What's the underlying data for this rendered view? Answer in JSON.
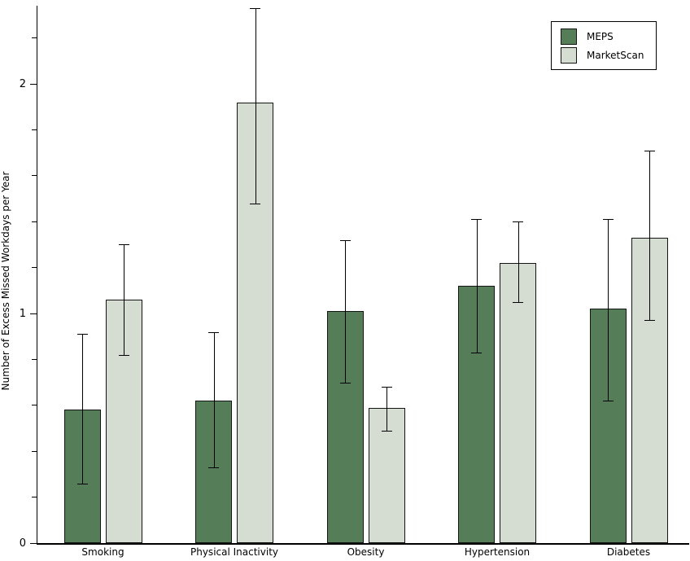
{
  "chart_data": {
    "type": "bar",
    "title": "",
    "xlabel": "",
    "ylabel": "Number of Excess Missed Workdays per Year",
    "categories": [
      "Smoking",
      "Physical Inactivity",
      "Obesity",
      "Hypertension",
      "Diabetes"
    ],
    "series": [
      {
        "name": "MEPS",
        "color": "#557d57",
        "values": [
          0.58,
          0.62,
          1.01,
          1.12,
          1.02
        ],
        "ci_low": [
          0.26,
          0.33,
          0.7,
          0.83,
          0.62
        ],
        "ci_high": [
          0.91,
          0.92,
          1.32,
          1.41,
          1.41
        ]
      },
      {
        "name": "MarketScan",
        "color": "#d5ddd2",
        "values": [
          1.06,
          1.92,
          0.59,
          1.22,
          1.33
        ],
        "ci_low": [
          0.82,
          1.48,
          0.49,
          1.05,
          0.97
        ],
        "ci_high": [
          1.3,
          2.33,
          0.68,
          1.4,
          1.71
        ]
      }
    ],
    "error_bars": true,
    "y_ticks_major": [
      0,
      1,
      2
    ],
    "y_minor_tick_interval": 0.2,
    "ylim": [
      0,
      2.34
    ],
    "grid": "off",
    "legend_position": "top-right",
    "legend_entries": [
      "MEPS",
      "MarketScan"
    ]
  },
  "colors": {
    "meps_bar": "#557d57",
    "marketscan_bar": "#d5ddd2",
    "axis": "#000000",
    "background": "#ffffff"
  }
}
